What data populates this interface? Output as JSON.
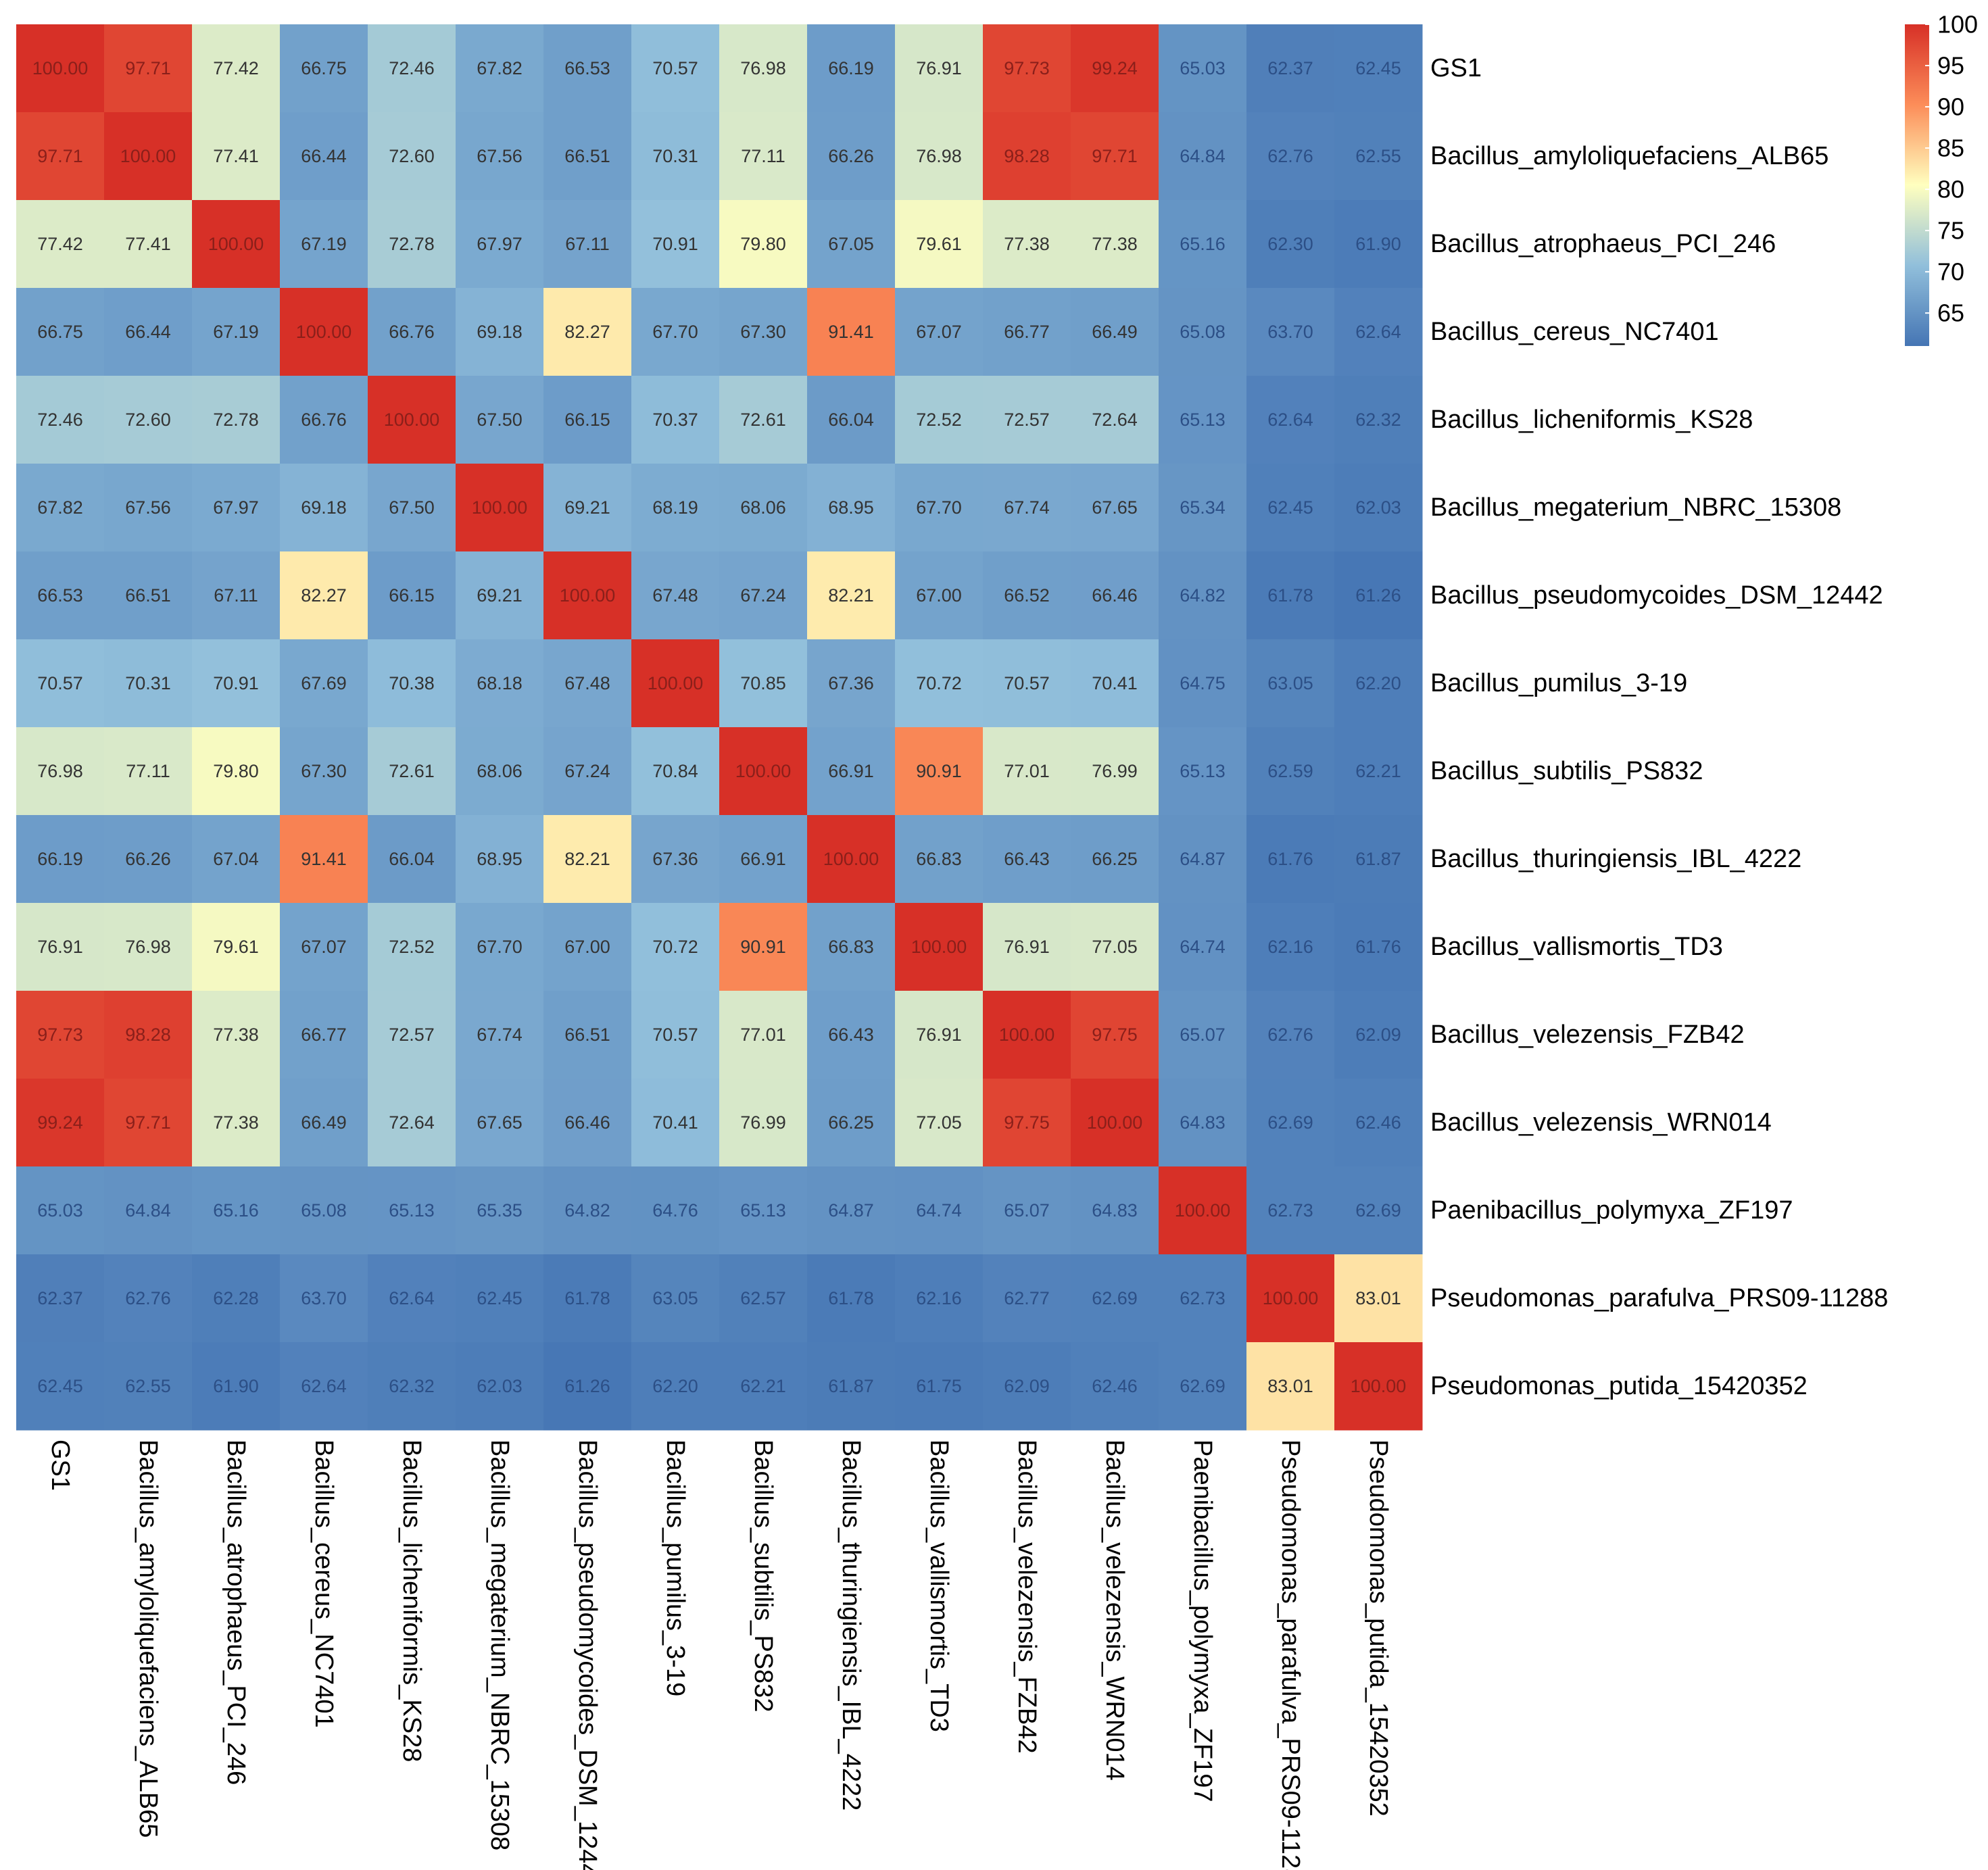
{
  "chart_data": {
    "type": "heatmap",
    "labels": [
      "GS1",
      "Bacillus_amyloliquefaciens_ALB65",
      "Bacillus_atrophaeus_PCI_246",
      "Bacillus_cereus_NC7401",
      "Bacillus_licheniformis_KS28",
      "Bacillus_megaterium_NBRC_15308",
      "Bacillus_pseudomycoides_DSM_12442",
      "Bacillus_pumilus_3-19",
      "Bacillus_subtilis_PS832",
      "Bacillus_thuringiensis_IBL_4222",
      "Bacillus_vallismortis_TD3",
      "Bacillus_velezensis_FZB42",
      "Bacillus_velezensis_WRN014",
      "Paenibacillus_polymyxa_ZF197",
      "Pseudomonas_parafulva_PRS09-11288",
      "Pseudomonas_putida_15420352"
    ],
    "matrix": [
      [
        "100.00",
        "97.71",
        "77.42",
        "66.75",
        "72.46",
        "67.82",
        "66.53",
        "70.57",
        "76.98",
        "66.19",
        "76.91",
        "97.73",
        "99.24",
        "65.03",
        "62.37",
        "62.45"
      ],
      [
        "97.71",
        "100.00",
        "77.41",
        "66.44",
        "72.60",
        "67.56",
        "66.51",
        "70.31",
        "77.11",
        "66.26",
        "76.98",
        "98.28",
        "97.71",
        "64.84",
        "62.76",
        "62.55"
      ],
      [
        "77.42",
        "77.41",
        "100.00",
        "67.19",
        "72.78",
        "67.97",
        "67.11",
        "70.91",
        "79.80",
        "67.05",
        "79.61",
        "77.38",
        "77.38",
        "65.16",
        "62.30",
        "61.90"
      ],
      [
        "66.75",
        "66.44",
        "67.19",
        "100.00",
        "66.76",
        "69.18",
        "82.27",
        "67.70",
        "67.30",
        "91.41",
        "67.07",
        "66.77",
        "66.49",
        "65.08",
        "63.70",
        "62.64"
      ],
      [
        "72.46",
        "72.60",
        "72.78",
        "66.76",
        "100.00",
        "67.50",
        "66.15",
        "70.37",
        "72.61",
        "66.04",
        "72.52",
        "72.57",
        "72.64",
        "65.13",
        "62.64",
        "62.32"
      ],
      [
        "67.82",
        "67.56",
        "67.97",
        "69.18",
        "67.50",
        "100.00",
        "69.21",
        "68.19",
        "68.06",
        "68.95",
        "67.70",
        "67.74",
        "67.65",
        "65.34",
        "62.45",
        "62.03"
      ],
      [
        "66.53",
        "66.51",
        "67.11",
        "82.27",
        "66.15",
        "69.21",
        "100.00",
        "67.48",
        "67.24",
        "82.21",
        "67.00",
        "66.52",
        "66.46",
        "64.82",
        "61.78",
        "61.26"
      ],
      [
        "70.57",
        "70.31",
        "70.91",
        "67.69",
        "70.38",
        "68.18",
        "67.48",
        "100.00",
        "70.85",
        "67.36",
        "70.72",
        "70.57",
        "70.41",
        "64.75",
        "63.05",
        "62.20"
      ],
      [
        "76.98",
        "77.11",
        "79.80",
        "67.30",
        "72.61",
        "68.06",
        "67.24",
        "70.84",
        "100.00",
        "66.91",
        "90.91",
        "77.01",
        "76.99",
        "65.13",
        "62.59",
        "62.21"
      ],
      [
        "66.19",
        "66.26",
        "67.04",
        "91.41",
        "66.04",
        "68.95",
        "82.21",
        "67.36",
        "66.91",
        "100.00",
        "66.83",
        "66.43",
        "66.25",
        "64.87",
        "61.76",
        "61.87"
      ],
      [
        "76.91",
        "76.98",
        "79.61",
        "67.07",
        "72.52",
        "67.70",
        "67.00",
        "70.72",
        "90.91",
        "66.83",
        "100.00",
        "76.91",
        "77.05",
        "64.74",
        "62.16",
        "61.76"
      ],
      [
        "97.73",
        "98.28",
        "77.38",
        "66.77",
        "72.57",
        "67.74",
        "66.51",
        "70.57",
        "77.01",
        "66.43",
        "76.91",
        "100.00",
        "97.75",
        "65.07",
        "62.76",
        "62.09"
      ],
      [
        "99.24",
        "97.71",
        "77.38",
        "66.49",
        "72.64",
        "67.65",
        "66.46",
        "70.41",
        "76.99",
        "66.25",
        "77.05",
        "97.75",
        "100.00",
        "64.83",
        "62.69",
        "62.46"
      ],
      [
        "65.03",
        "64.84",
        "65.16",
        "65.08",
        "65.13",
        "65.35",
        "64.82",
        "64.76",
        "65.13",
        "64.87",
        "64.74",
        "65.07",
        "64.83",
        "100.00",
        "62.73",
        "62.69"
      ],
      [
        "62.37",
        "62.76",
        "62.28",
        "63.70",
        "62.64",
        "62.45",
        "61.78",
        "63.05",
        "62.57",
        "61.78",
        "62.16",
        "62.77",
        "62.69",
        "62.73",
        "100.00",
        "83.01"
      ],
      [
        "62.45",
        "62.55",
        "61.90",
        "62.64",
        "62.32",
        "62.03",
        "61.26",
        "62.20",
        "62.21",
        "61.87",
        "61.75",
        "62.09",
        "62.46",
        "62.69",
        "83.01",
        "100.00"
      ]
    ],
    "color_scale": {
      "min": 61,
      "max": 100,
      "ticks": [
        "100",
        "95",
        "90",
        "85",
        "80",
        "75",
        "70",
        "65"
      ],
      "colors": [
        "#4575b4",
        "#91bfdb",
        "#ffffbf",
        "#fc8d59",
        "#d73027"
      ]
    },
    "title": "",
    "xlabel": "",
    "ylabel": "",
    "legend_position": "top-right"
  }
}
